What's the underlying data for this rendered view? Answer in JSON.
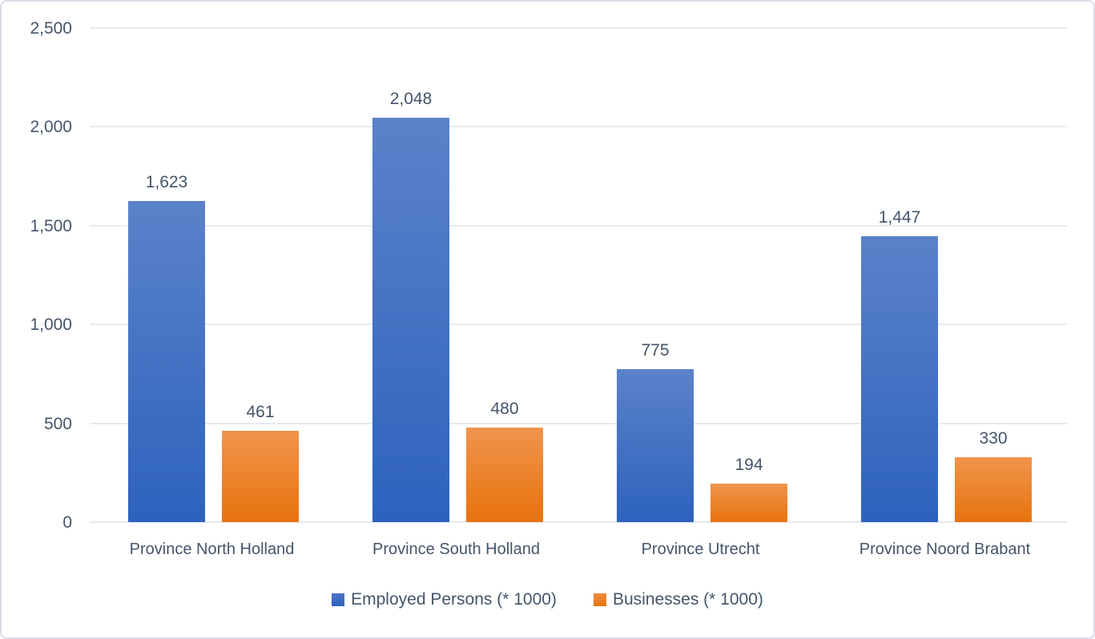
{
  "chart_data": {
    "type": "bar",
    "categories": [
      "Province North Holland",
      "Province South Holland",
      "Province Utrecht",
      "Province Noord Brabant"
    ],
    "series": [
      {
        "name": "Employed Persons (* 1000)",
        "values": [
          1623,
          2048,
          775,
          1447
        ],
        "data_labels": [
          "1,623",
          "2,048",
          "775",
          "1,447"
        ],
        "color_top": "#5b82ca",
        "color_bottom": "#2d62bd"
      },
      {
        "name": "Businesses (* 1000)",
        "values": [
          461,
          480,
          194,
          330
        ],
        "data_labels": [
          "461",
          "480",
          "194",
          "330"
        ],
        "color_top": "#f0944d",
        "color_bottom": "#e8730d"
      }
    ],
    "title": "",
    "xlabel": "",
    "ylabel": "",
    "ylim": [
      0,
      2500
    ],
    "y_ticks": [
      0,
      500,
      1000,
      1500,
      2000,
      2500
    ],
    "y_tick_labels": [
      "0",
      "500",
      "1,000",
      "1,500",
      "2,000",
      "2,500"
    ],
    "grid": true,
    "legend_position": "bottom",
    "colors": {
      "text": "#44546a",
      "gridline": "#e7eaf1",
      "frame_border": "#d9dde6",
      "background": "#ffffff",
      "series_blue": "#2d62bd",
      "series_orange": "#e8730d"
    }
  }
}
